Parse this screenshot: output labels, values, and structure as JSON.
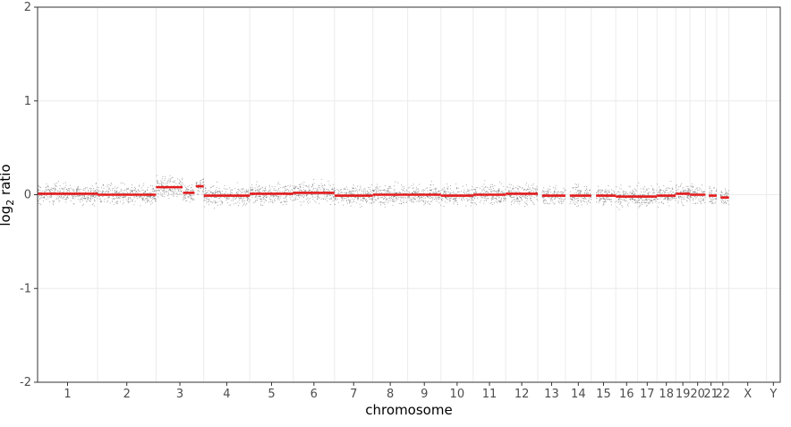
{
  "chart_data": {
    "type": "scatter",
    "xlabel": "chromosome",
    "ylabel_base": "log",
    "ylabel_sub": "2",
    "ylabel_rest": " ratio",
    "ylim": [
      -2,
      2
    ],
    "yticks": [
      -2,
      -1,
      0,
      1,
      2
    ],
    "grid": true,
    "colors": {
      "points": "#555555",
      "segments": "#e41a1c",
      "grid": "#ebebeb",
      "border": "#333333"
    },
    "chromosomes": [
      {
        "name": "1",
        "start": 0,
        "end": 249,
        "segments": [
          {
            "from": 0,
            "to": 249,
            "value": 0.01
          }
        ]
      },
      {
        "name": "2",
        "start": 249,
        "end": 492,
        "segments": [
          {
            "from": 0,
            "to": 243,
            "value": 0.0
          }
        ]
      },
      {
        "name": "3",
        "start": 492,
        "end": 690,
        "segments": [
          {
            "from": 0,
            "to": 110,
            "value": 0.08
          },
          {
            "from": 112,
            "to": 160,
            "value": 0.02
          },
          {
            "from": 165,
            "to": 198,
            "value": 0.09
          }
        ]
      },
      {
        "name": "4",
        "start": 690,
        "end": 881,
        "segments": [
          {
            "from": 0,
            "to": 191,
            "value": -0.01
          }
        ]
      },
      {
        "name": "5",
        "start": 881,
        "end": 1062,
        "segments": [
          {
            "from": 0,
            "to": 181,
            "value": 0.01
          }
        ]
      },
      {
        "name": "6",
        "start": 1062,
        "end": 1233,
        "segments": [
          {
            "from": 0,
            "to": 171,
            "value": 0.02
          }
        ]
      },
      {
        "name": "7",
        "start": 1233,
        "end": 1392,
        "segments": [
          {
            "from": 0,
            "to": 159,
            "value": -0.01
          }
        ]
      },
      {
        "name": "8",
        "start": 1392,
        "end": 1537,
        "segments": [
          {
            "from": 0,
            "to": 145,
            "value": 0.0
          }
        ]
      },
      {
        "name": "9",
        "start": 1537,
        "end": 1675,
        "segments": [
          {
            "from": 0,
            "to": 138,
            "value": 0.0
          }
        ]
      },
      {
        "name": "10",
        "start": 1675,
        "end": 1809,
        "segments": [
          {
            "from": 0,
            "to": 134,
            "value": -0.01
          }
        ]
      },
      {
        "name": "11",
        "start": 1809,
        "end": 1944,
        "segments": [
          {
            "from": 0,
            "to": 135,
            "value": 0.0
          }
        ]
      },
      {
        "name": "12",
        "start": 1944,
        "end": 2077,
        "segments": [
          {
            "from": 0,
            "to": 133,
            "value": 0.01
          }
        ]
      },
      {
        "name": "13",
        "start": 2077,
        "end": 2192,
        "segments": [
          {
            "from": 18,
            "to": 115,
            "value": -0.01
          }
        ]
      },
      {
        "name": "14",
        "start": 2192,
        "end": 2299,
        "segments": [
          {
            "from": 18,
            "to": 107,
            "value": -0.01
          }
        ]
      },
      {
        "name": "15",
        "start": 2299,
        "end": 2401,
        "segments": [
          {
            "from": 20,
            "to": 102,
            "value": -0.01
          }
        ]
      },
      {
        "name": "16",
        "start": 2401,
        "end": 2491,
        "segments": [
          {
            "from": 0,
            "to": 90,
            "value": -0.02
          }
        ]
      },
      {
        "name": "17",
        "start": 2491,
        "end": 2572,
        "segments": [
          {
            "from": 0,
            "to": 81,
            "value": -0.02
          }
        ]
      },
      {
        "name": "18",
        "start": 2572,
        "end": 2650,
        "segments": [
          {
            "from": 0,
            "to": 78,
            "value": -0.01
          }
        ]
      },
      {
        "name": "19",
        "start": 2650,
        "end": 2709,
        "segments": [
          {
            "from": 0,
            "to": 59,
            "value": 0.01
          }
        ]
      },
      {
        "name": "20",
        "start": 2709,
        "end": 2773,
        "segments": [
          {
            "from": 0,
            "to": 64,
            "value": 0.0
          }
        ]
      },
      {
        "name": "21",
        "start": 2773,
        "end": 2820,
        "segments": [
          {
            "from": 14,
            "to": 47,
            "value": -0.01
          }
        ]
      },
      {
        "name": "22",
        "start": 2820,
        "end": 2871,
        "segments": [
          {
            "from": 16,
            "to": 51,
            "value": -0.03
          }
        ]
      },
      {
        "name": "X",
        "start": 2871,
        "end": 3027,
        "segments": []
      },
      {
        "name": "Y",
        "start": 3027,
        "end": 3084,
        "segments": []
      }
    ]
  }
}
